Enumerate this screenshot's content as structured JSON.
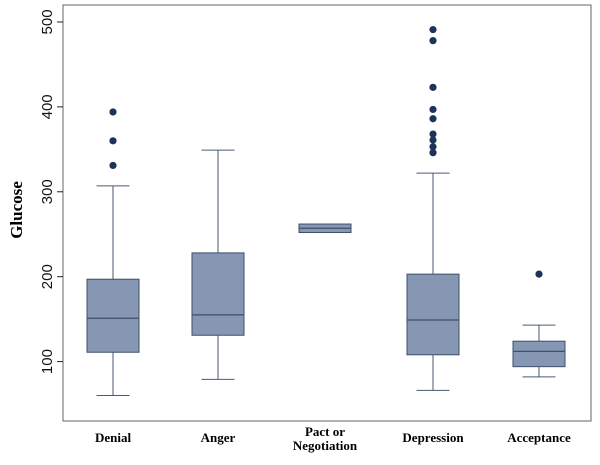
{
  "chart_data": {
    "type": "boxplot",
    "title": "",
    "xlabel": "",
    "ylabel": "Glucose",
    "ylim": [
      30,
      520
    ],
    "yticks": [
      100,
      200,
      300,
      400,
      500
    ],
    "grid": false,
    "legend": "none",
    "colors": {
      "box_fill": "#8597b2",
      "box_stroke": "#3f4f6a",
      "whisker": "#4a5a73",
      "outlier": "#1d3358",
      "frame": "#666666"
    },
    "categories": [
      {
        "label_lines": [
          "Denial"
        ]
      },
      {
        "label_lines": [
          "Anger"
        ]
      },
      {
        "label_lines": [
          "Pact or",
          "Negotiation"
        ]
      },
      {
        "label_lines": [
          "Depression"
        ]
      },
      {
        "label_lines": [
          "Acceptance"
        ]
      }
    ],
    "boxes": [
      {
        "whisker_low": 60,
        "q1": 111,
        "median": 151,
        "q3": 197,
        "whisker_high": 307,
        "outliers": [
          331,
          360,
          394
        ]
      },
      {
        "whisker_low": 79,
        "q1": 131,
        "median": 155,
        "q3": 228,
        "whisker_high": 349,
        "outliers": []
      },
      {
        "whisker_low": 252,
        "q1": 252,
        "median": 257,
        "q3": 262,
        "whisker_high": 262,
        "outliers": []
      },
      {
        "whisker_low": 66,
        "q1": 108,
        "median": 149,
        "q3": 203,
        "whisker_high": 322,
        "outliers": [
          346,
          353,
          361,
          368,
          386,
          397,
          423,
          478,
          491
        ]
      },
      {
        "whisker_low": 82,
        "q1": 94,
        "median": 112,
        "q3": 124,
        "whisker_high": 143,
        "outliers": [
          203
        ]
      }
    ]
  }
}
